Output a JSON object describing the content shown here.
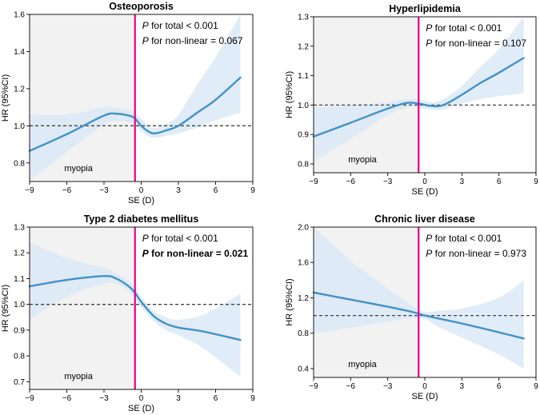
{
  "figure": {
    "xlabel": "SE (D)",
    "ylabel": "HR (95%CI)",
    "region_label": "myopia"
  },
  "colors": {
    "curve": "#4292c6",
    "band": "#dbe9f6",
    "myopia_shade": "#f2f2f2",
    "cutoff_line": "#e6008a",
    "reference_line": "#444444"
  },
  "chart_data": [
    {
      "type": "line",
      "title": "Osteoporosis",
      "xlabel": "SE (D)",
      "ylabel": "HR (95%CI)",
      "xlim": [
        -9,
        9
      ],
      "ylim": [
        0.7,
        1.6
      ],
      "xticks": [
        -9,
        -6,
        -3,
        0,
        3,
        6,
        9
      ],
      "yticks": [
        0.8,
        1.0,
        1.2,
        1.4,
        1.6
      ],
      "ytick_labels": [
        "0.8",
        "1.0",
        "1.2",
        "1.4",
        "1.6"
      ],
      "cutoff_se": -0.5,
      "myopia_range": [
        -9,
        -0.5
      ],
      "reference_hr": 1.0,
      "annotations": [
        {
          "prefix": "P",
          "text": " for total < 0.001",
          "bold": false
        },
        {
          "prefix": "P",
          "text": " for non-linear = 0.067",
          "bold": false
        }
      ],
      "series": [
        {
          "name": "HR",
          "x": [
            -9,
            -6,
            -3,
            -2,
            -1,
            -0.5,
            0,
            0.7,
            1.2,
            2,
            3,
            4.5,
            6,
            8
          ],
          "hr": [
            0.865,
            0.955,
            1.055,
            1.065,
            1.055,
            1.04,
            1.0,
            0.965,
            0.96,
            0.975,
            1.0,
            1.07,
            1.14,
            1.26
          ],
          "lower": [
            0.7,
            0.86,
            1.005,
            1.025,
            1.02,
            1.01,
            0.97,
            0.94,
            0.935,
            0.945,
            0.96,
            0.99,
            1.03,
            1.07
          ],
          "upper": [
            1.06,
            1.06,
            1.1,
            1.095,
            1.085,
            1.07,
            1.04,
            0.995,
            0.99,
            1.01,
            1.06,
            1.22,
            1.37,
            1.6
          ]
        }
      ]
    },
    {
      "type": "line",
      "title": "Hyperlipidemia",
      "xlabel": "SE (D)",
      "ylabel": "HR (95%CI)",
      "xlim": [
        -9,
        9
      ],
      "ylim": [
        0.77,
        1.3
      ],
      "xticks": [
        -9,
        -6,
        -3,
        0,
        3,
        6,
        9
      ],
      "yticks": [
        0.8,
        0.9,
        1.0,
        1.1,
        1.2,
        1.3
      ],
      "ytick_labels": [
        "0.8",
        "0.9",
        "1.0",
        "1.1",
        "1.2",
        "1.3"
      ],
      "cutoff_se": -0.5,
      "myopia_range": [
        -9,
        -0.5
      ],
      "reference_hr": 1.0,
      "annotations": [
        {
          "prefix": "P",
          "text": " for total < 0.001",
          "bold": false
        },
        {
          "prefix": "P",
          "text": " for non-linear = 0.107",
          "bold": false
        }
      ],
      "series": [
        {
          "name": "HR",
          "x": [
            -9,
            -6,
            -3,
            -1.5,
            -0.5,
            0.5,
            1.5,
            3,
            4.5,
            6,
            8
          ],
          "hr": [
            0.893,
            0.94,
            0.988,
            1.007,
            1.005,
            0.997,
            1.0,
            1.035,
            1.075,
            1.11,
            1.16
          ],
          "lower": [
            0.81,
            0.885,
            0.965,
            0.99,
            0.99,
            0.985,
            0.985,
            1.005,
            1.02,
            1.03,
            1.04
          ],
          "upper": [
            0.99,
            1.0,
            1.01,
            1.02,
            1.02,
            1.01,
            1.02,
            1.065,
            1.13,
            1.19,
            1.3
          ]
        }
      ]
    },
    {
      "type": "line",
      "title": "Type 2 diabetes mellitus",
      "xlabel": "SE (D)",
      "ylabel": "HR (95%CI)",
      "xlim": [
        -9,
        9
      ],
      "ylim": [
        0.67,
        1.3
      ],
      "xticks": [
        -9,
        -6,
        -3,
        0,
        3,
        6,
        9
      ],
      "yticks": [
        0.7,
        0.8,
        0.9,
        1.0,
        1.1,
        1.2,
        1.3
      ],
      "ytick_labels": [
        "0.7",
        "0.8",
        "0.9",
        "1.0",
        "1.1",
        "1.2",
        "1.3"
      ],
      "cutoff_se": -0.5,
      "myopia_range": [
        -9,
        -0.5
      ],
      "reference_hr": 1.0,
      "annotations": [
        {
          "prefix": "P",
          "text": " for total < 0.001",
          "bold": false
        },
        {
          "prefix": "P",
          "text": " for non-linear = 0.021",
          "bold": true
        }
      ],
      "series": [
        {
          "name": "HR",
          "x": [
            -9,
            -6,
            -3,
            -2,
            -1,
            -0.5,
            0,
            1,
            2,
            3,
            5,
            8
          ],
          "hr": [
            1.07,
            1.095,
            1.11,
            1.1,
            1.07,
            1.045,
            1.01,
            0.955,
            0.925,
            0.91,
            0.895,
            0.862
          ],
          "lower": [
            0.94,
            1.03,
            1.08,
            1.08,
            1.05,
            1.025,
            0.99,
            0.935,
            0.9,
            0.88,
            0.83,
            0.72
          ],
          "upper": [
            1.24,
            1.18,
            1.14,
            1.12,
            1.09,
            1.065,
            1.03,
            0.975,
            0.95,
            0.94,
            0.96,
            1.04
          ]
        }
      ]
    },
    {
      "type": "line",
      "title": "Chronic liver disease",
      "xlabel": "SE (D)",
      "ylabel": "HR (95%CI)",
      "xlim": [
        -9,
        9
      ],
      "ylim": [
        0.3,
        2.0
      ],
      "xticks": [
        -9,
        -6,
        -3,
        0,
        3,
        6,
        9
      ],
      "yticks": [
        0.4,
        0.8,
        1.2,
        1.6,
        2.0
      ],
      "ytick_labels": [
        "0.4",
        "0.8",
        "1.2",
        "1.6",
        "2.0"
      ],
      "cutoff_se": -0.5,
      "myopia_range": [
        -9,
        -0.5
      ],
      "reference_hr": 1.0,
      "annotations": [
        {
          "prefix": "P",
          "text": " for total < 0.001",
          "bold": false
        },
        {
          "prefix": "P",
          "text": " for non-linear = 0.973",
          "bold": false
        }
      ],
      "series": [
        {
          "name": "HR",
          "x": [
            -9,
            -6,
            -3,
            -1,
            0,
            1,
            3,
            6,
            8
          ],
          "hr": [
            1.26,
            1.18,
            1.1,
            1.04,
            1.0,
            0.97,
            0.91,
            0.81,
            0.74
          ],
          "lower": [
            0.8,
            0.86,
            0.93,
            0.97,
            0.96,
            0.88,
            0.75,
            0.56,
            0.4
          ],
          "upper": [
            2.0,
            1.62,
            1.3,
            1.11,
            1.04,
            1.05,
            1.08,
            1.2,
            1.4
          ]
        }
      ]
    }
  ]
}
